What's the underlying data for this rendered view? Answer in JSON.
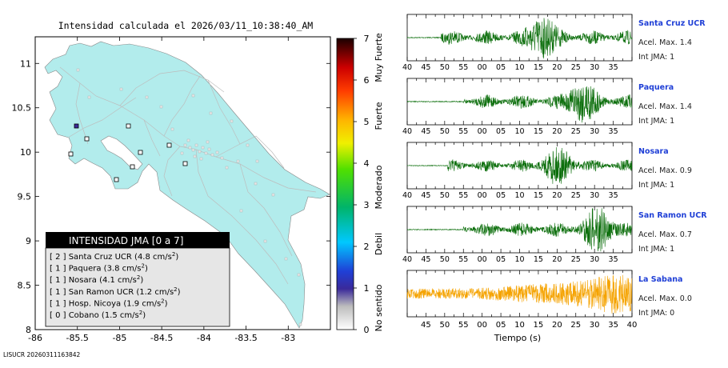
{
  "map": {
    "title": "Intensidad calculada el 2026/03/11_10:38:40_AM",
    "footer": "LISUCR 20260311163842",
    "x_ticks": [
      "-86",
      "-85.5",
      "-85",
      "-84.5",
      "-84",
      "-83.5",
      "-83"
    ],
    "y_ticks": [
      "11",
      "10.5",
      "10",
      "9.5",
      "9",
      "8.5",
      "8"
    ],
    "xlim": [
      -86,
      -82.5
    ],
    "ylim": [
      8,
      11.3
    ]
  },
  "colorbar": {
    "ticks": [
      "0",
      "1",
      "2",
      "3",
      "4",
      "5",
      "6",
      "7"
    ],
    "categories": [
      "No sentido",
      "Debil",
      "Moderado",
      "Fuerte",
      "Muy Fuerte"
    ],
    "range": [
      0,
      7
    ]
  },
  "legend": {
    "title": "INTENSIDAD JMA [0 a 7]",
    "entries": [
      {
        "jma": "[ 2 ]",
        "name": "Santa Cruz UCR",
        "value": "(4.8 cm/s",
        "unit_sup": "2",
        "close": ")"
      },
      {
        "jma": "[ 1 ]",
        "name": "Paquera",
        "value": "(3.8 cm/s",
        "unit_sup": "2",
        "close": ")"
      },
      {
        "jma": "[ 1 ]",
        "name": "Nosara",
        "value": "(4.1 cm/s",
        "unit_sup": "2",
        "close": ")"
      },
      {
        "jma": "[ 1 ]",
        "name": "San Ramon UCR",
        "value": "(1.2 cm/s",
        "unit_sup": "2",
        "close": ")"
      },
      {
        "jma": "[ 1 ]",
        "name": "Hosp. Nicoya",
        "value": "(1.9 cm/s",
        "unit_sup": "2",
        "close": ")"
      },
      {
        "jma": "[ 0 ]",
        "name": "Cobano",
        "value": "(1.5 cm/s",
        "unit_sup": "2",
        "close": ")"
      }
    ]
  },
  "chart_data": {
    "type": "line",
    "xlabel": "Tiempo (s)",
    "x_tick_labels": [
      "40",
      "45",
      "50",
      "55",
      "00",
      "05",
      "10",
      "15",
      "20",
      "25",
      "30",
      "35"
    ],
    "bottom_x_tick_labels": [
      "45",
      "50",
      "55",
      "00",
      "05",
      "10",
      "15",
      "20",
      "25",
      "30",
      "35",
      "40"
    ],
    "colors": {
      "normal": "#0b6e0b",
      "highlight": "#f5a300",
      "label": "#1f3fd6"
    },
    "series": [
      {
        "name": "Santa Cruz UCR",
        "acel_label": "Acel. Max. 1.4",
        "int_label": "Int JMA: 1",
        "color": "#0b6e0b",
        "onset": 0.15,
        "peak": 0.6,
        "amp": 1.0
      },
      {
        "name": "Paquera",
        "acel_label": "Acel. Max. 1.4",
        "int_label": "Int JMA: 1",
        "color": "#0b6e0b",
        "onset": 0.25,
        "peak": 0.78,
        "amp": 1.0
      },
      {
        "name": "Nosara",
        "acel_label": "Acel. Max. 0.9",
        "int_label": "Int JMA: 1",
        "color": "#0b6e0b",
        "onset": 0.18,
        "peak": 0.67,
        "amp": 0.85
      },
      {
        "name": "San Ramon UCR",
        "acel_label": "Acel. Max. 0.7",
        "int_label": "Int JMA: 1",
        "color": "#0b6e0b",
        "onset": 0.25,
        "peak": 0.85,
        "amp": 1.0
      },
      {
        "name": "La Sabana",
        "acel_label": "Acel. Max. 0.0",
        "int_label": "Int JMA: 0",
        "color": "#f5a300",
        "onset": 0.0,
        "peak": 0.9,
        "amp": 1.0
      }
    ]
  }
}
